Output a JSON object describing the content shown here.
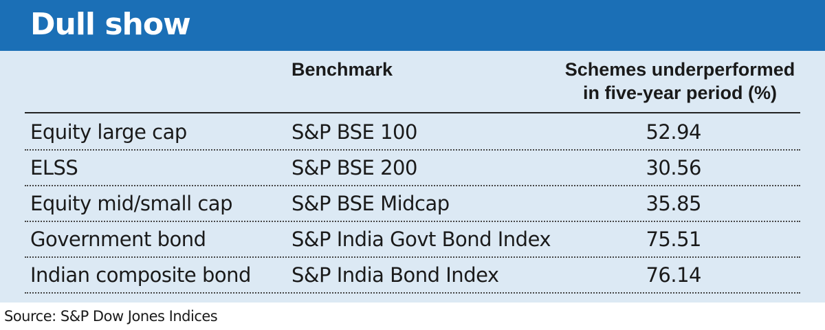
{
  "title": "Dull show",
  "chart_data": {
    "type": "table",
    "title": "Dull show",
    "columns": [
      "",
      "Benchmark",
      "Schemes underperformed in five-year period (%)"
    ],
    "header_lines": [
      "Schemes underperformed",
      "in five-year period (%)"
    ],
    "rows": [
      {
        "category": "Equity large cap",
        "benchmark": "S&P BSE 100",
        "value": "52.94"
      },
      {
        "category": "ELSS",
        "benchmark": "S&P BSE 200",
        "value": "30.56"
      },
      {
        "category": "Equity mid/small cap",
        "benchmark": "S&P BSE Midcap",
        "value": "35.85"
      },
      {
        "category": "Government bond",
        "benchmark": "S&P India Govt Bond Index",
        "value": "75.51"
      },
      {
        "category": "Indian composite bond",
        "benchmark": "S&P India Bond Index",
        "value": "76.14"
      }
    ]
  },
  "source": "Source: S&P Dow Jones Indices",
  "colors": {
    "title_bar": "#1b6fb6",
    "panel": "#dce9f4",
    "text": "#1a1a1a"
  }
}
